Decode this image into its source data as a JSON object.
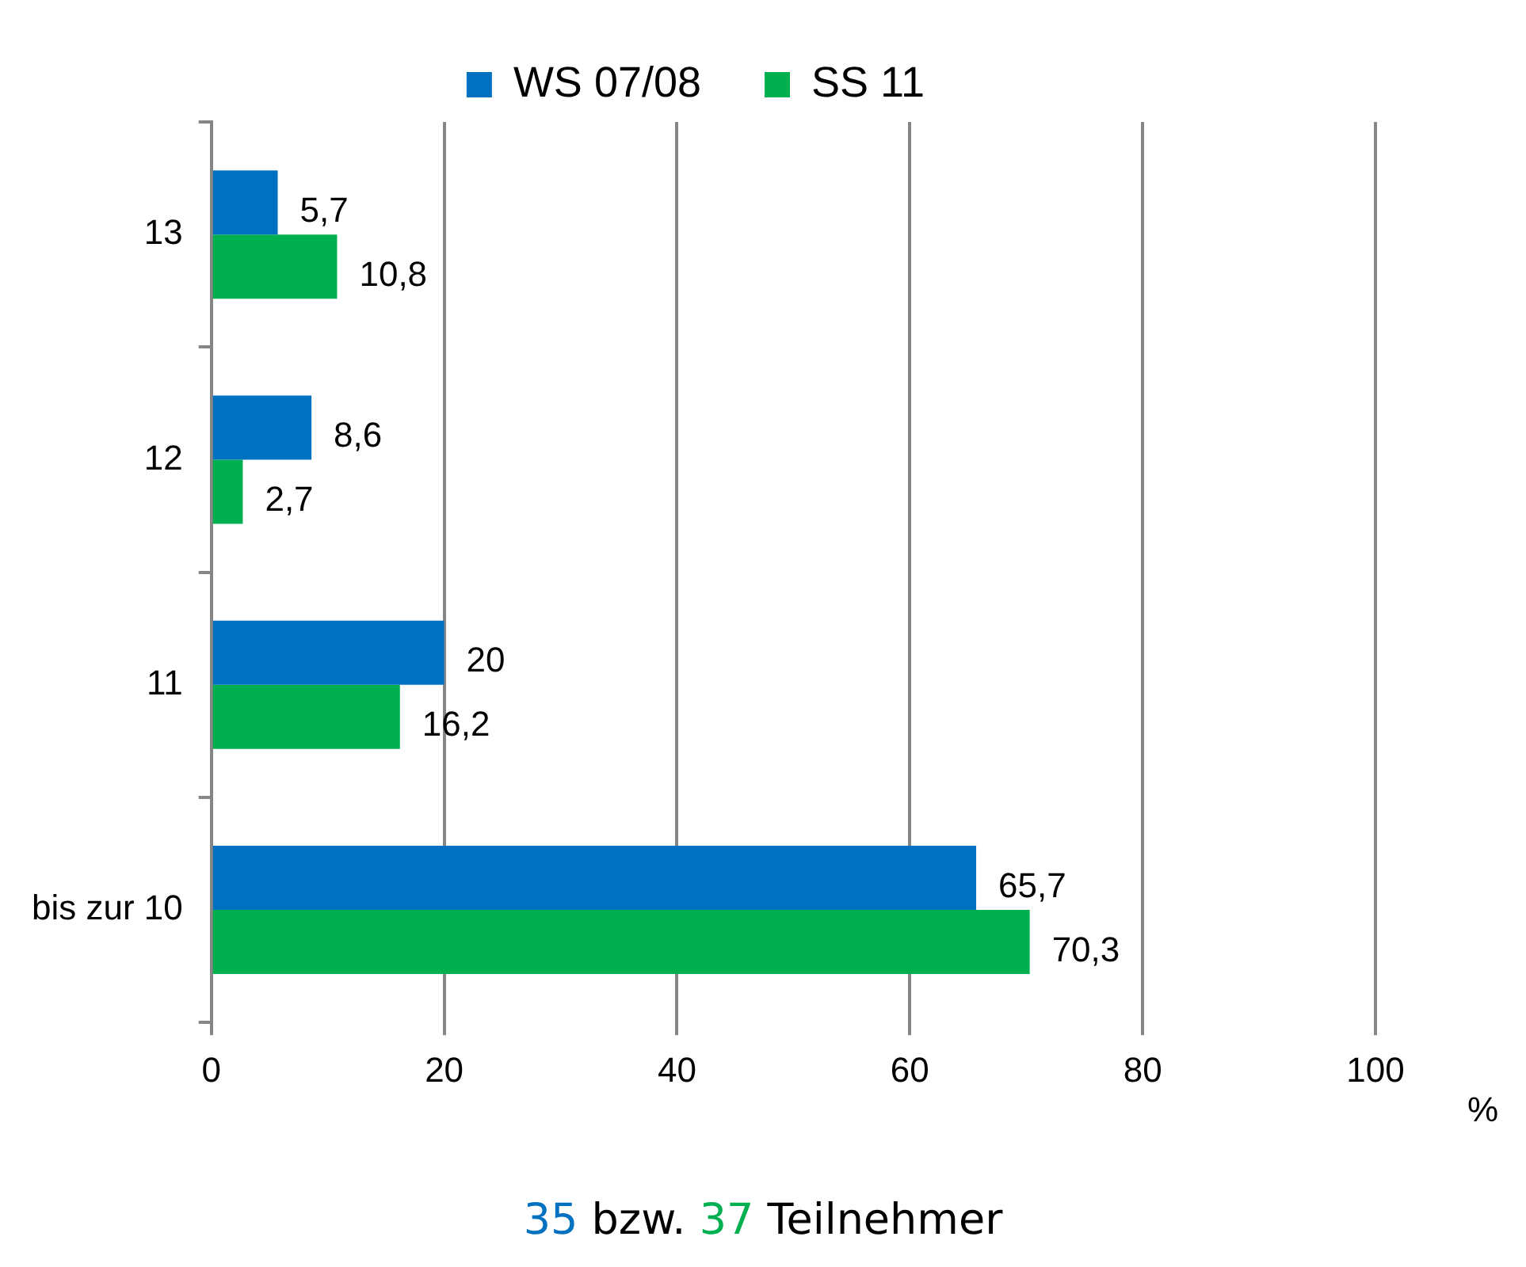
{
  "chart_data": {
    "type": "bar",
    "orientation": "horizontal",
    "categories": [
      "13",
      "12",
      "11",
      "bis zur 10"
    ],
    "series": [
      {
        "name": "WS 07/08",
        "color": "#0070c0",
        "values": [
          5.7,
          8.6,
          20,
          65.7
        ],
        "value_labels": [
          "5,7",
          "8,6",
          "20",
          "65,7"
        ]
      },
      {
        "name": "SS 11",
        "color": "#00b050",
        "values": [
          10.8,
          2.7,
          16.2,
          70.3
        ],
        "value_labels": [
          "10,8",
          "2,7",
          "16,2",
          "70,3"
        ]
      }
    ],
    "xlim": [
      0,
      100
    ],
    "xticks": [
      0,
      20,
      40,
      60,
      80,
      100
    ],
    "xlabel": "%",
    "grid": "x",
    "legend": "top",
    "annotations": [
      "35 bzw. 37 Teilnehmer"
    ]
  }
}
